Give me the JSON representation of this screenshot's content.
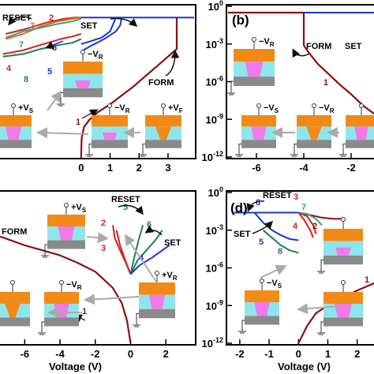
{
  "colors": {
    "form": "#8b1010",
    "red": "#d42020",
    "orange": "#e66a12",
    "green": "#1e7d5a",
    "teal": "#2aa58a",
    "blue": "#1a35d0",
    "electrode": "#f28a18",
    "oxide": "#8ee6ec",
    "filament": "#f07be8",
    "substrate": "#8a8a8a"
  },
  "xlabel": "Voltage (V)",
  "chart_data": [
    {
      "panel": "a",
      "type": "line",
      "yscale": "log",
      "xlim": [
        -2.8,
        3.9
      ],
      "ylim_exp": [
        -12,
        0
      ],
      "x_ticks": [
        "0",
        "1",
        "2",
        "3"
      ],
      "annotations": [
        "RESET",
        "SET",
        "FORM"
      ],
      "curve_numbers": [
        "1",
        "2",
        "3",
        "4",
        "5",
        "6",
        "7",
        "8"
      ],
      "series": [
        {
          "id": "form",
          "color": "form",
          "x": [
            0,
            0.02,
            0.1,
            0.3,
            0.6,
            1.0,
            1.4,
            1.8,
            2.2,
            2.6,
            2.9,
            3.1,
            3.25,
            3.3,
            3.3
          ],
          "exp": [
            -12,
            -10.5,
            -9.6,
            -9.0,
            -8.4,
            -7.8,
            -7.1,
            -6.4,
            -5.6,
            -4.8,
            -4.2,
            -3.8,
            -3.5,
            -3.4,
            -0.9
          ]
        },
        {
          "id": "set_line",
          "color": "blue",
          "x": [
            0,
            0.5,
            1.5,
            2.5,
            3.3,
            3.9
          ],
          "exp": [
            -0.9,
            -0.9,
            -0.9,
            -0.9,
            -0.9,
            -0.9
          ]
        },
        {
          "id": "c6",
          "color": "blue",
          "x": [
            0,
            0.3,
            0.8,
            1.2,
            1.35,
            1.4
          ],
          "exp": [
            -3.6,
            -3.2,
            -2.6,
            -2.0,
            -1.5,
            -0.9
          ]
        },
        {
          "id": "c5",
          "color": "blue",
          "x": [
            0,
            0.3,
            0.7,
            1.0,
            1.2
          ],
          "exp": [
            -3.0,
            -2.8,
            -2.5,
            -2.0,
            -0.9
          ]
        },
        {
          "id": "c2",
          "color": "red",
          "x": [
            -2.6,
            -1.9,
            -1.2,
            -0.6,
            -0.2,
            0
          ],
          "exp": [
            -2.2,
            -1.8,
            -1.3,
            -1.0,
            -0.9,
            -0.9
          ]
        },
        {
          "id": "c3",
          "color": "orange",
          "x": [
            -2.6,
            -2.0,
            -1.4,
            -0.8,
            -0.3,
            0
          ],
          "exp": [
            -2.6,
            -2.2,
            -1.6,
            -1.2,
            -1.0,
            -0.9
          ]
        },
        {
          "id": "c7",
          "color": "teal",
          "x": [
            -2.6,
            -2.0,
            -1.4,
            -0.8,
            -0.3,
            0
          ],
          "exp": [
            -2.5,
            -2.0,
            -1.7,
            -1.4,
            -1.2,
            -1.0
          ]
        },
        {
          "id": "c4",
          "color": "red",
          "x": [
            -2.7,
            -2.0,
            -1.3,
            -0.7,
            -0.3,
            0
          ],
          "exp": [
            -3.8,
            -3.5,
            -3.0,
            -2.6,
            -2.4,
            -2.2
          ]
        },
        {
          "id": "c8",
          "color": "green",
          "x": [
            -2.7,
            -2.0,
            -1.4,
            -0.8,
            -0.3,
            0
          ],
          "exp": [
            -4.0,
            -3.8,
            -3.4,
            -3.1,
            -2.9,
            -2.6
          ]
        }
      ]
    },
    {
      "panel": "b",
      "type": "line",
      "yscale": "log",
      "xlim": [
        -7.2,
        -1.0
      ],
      "ylim_exp": [
        -12,
        0
      ],
      "x_ticks": [
        "-6",
        "-4",
        "-2"
      ],
      "y_ticks": [
        "10^0",
        "10^-3",
        "10^-6",
        "10^-9",
        "10^-12"
      ],
      "annotations": [
        "FORM",
        "SET"
      ],
      "curve_numbers": [
        "1"
      ],
      "series": [
        {
          "id": "form",
          "color": "form",
          "x": [
            -1.0,
            -1.5,
            -2.0,
            -2.5,
            -3.0,
            -3.4,
            -3.7,
            -3.9,
            -4.0,
            -4.0,
            -5.0,
            -6.0,
            -7.2
          ],
          "exp": [
            -8.6,
            -7.9,
            -7.0,
            -6.2,
            -5.3,
            -4.6,
            -3.9,
            -3.4,
            -3.1,
            -0.5,
            -0.5,
            -0.5,
            -0.5
          ]
        },
        {
          "id": "set",
          "color": "blue",
          "x": [
            -4.0,
            -3.0,
            -2.0,
            -1.0
          ],
          "exp": [
            -0.5,
            -0.5,
            -0.5,
            -0.5
          ]
        }
      ]
    },
    {
      "panel": "c",
      "type": "line",
      "yscale": "log",
      "xlim": [
        -7.4,
        3.6
      ],
      "ylim_exp": [
        -12,
        0
      ],
      "x_ticks": [
        "-6",
        "-4",
        "-2",
        "0",
        "2"
      ],
      "annotations": [
        "FORM",
        "RESET",
        "SET"
      ],
      "curve_numbers": [
        "1",
        "2",
        "3",
        "4",
        "5",
        "6"
      ],
      "series": [
        {
          "id": "form",
          "color": "form",
          "x": [
            -7.4,
            -6.0,
            -5.0,
            -4.0,
            -3.0,
            -2.0,
            -1.0,
            -0.5,
            -0.2,
            0
          ],
          "exp": [
            -3.5,
            -4.2,
            -4.6,
            -5.0,
            -5.6,
            -6.3,
            -7.6,
            -8.8,
            -10.2,
            -12
          ]
        },
        {
          "id": "c2",
          "color": "red",
          "x": [
            0,
            -0.3,
            -0.6,
            -0.9,
            -1.0
          ],
          "exp": [
            -6.5,
            -5.5,
            -4.6,
            -3.6,
            -2.6
          ]
        },
        {
          "id": "c3",
          "color": "red",
          "x": [
            0,
            -0.3,
            -0.6,
            -0.8
          ],
          "exp": [
            -6.5,
            -5.4,
            -4.2,
            -3.0
          ]
        },
        {
          "id": "c5",
          "color": "green",
          "x": [
            0,
            0.2,
            0.45,
            0.7
          ],
          "exp": [
            -6.5,
            -5.2,
            -3.8,
            -2.6
          ]
        },
        {
          "id": "c6",
          "color": "green",
          "x": [
            0,
            0.4,
            0.9,
            1.4,
            1.8
          ],
          "exp": [
            -6.5,
            -5.4,
            -4.6,
            -3.8,
            -3.0
          ]
        },
        {
          "id": "c4",
          "color": "blue",
          "x": [
            0,
            0.5,
            1.2,
            1.8,
            2.2
          ],
          "exp": [
            -6.5,
            -5.8,
            -5.2,
            -4.6,
            -4.2
          ]
        }
      ]
    },
    {
      "panel": "d",
      "type": "line",
      "yscale": "log",
      "xlim": [
        -2.4,
        2.6
      ],
      "ylim_exp": [
        -12,
        0
      ],
      "x_ticks": [
        "-2",
        "-1",
        "0",
        "1",
        "2"
      ],
      "y_ticks": [
        "10^0",
        "10^-3",
        "10^-6",
        "10^-9",
        "10^-12"
      ],
      "annotations": [
        "RESET",
        "SET"
      ],
      "curve_numbers": [
        "1",
        "2",
        "3",
        "4",
        "5",
        "6",
        "7",
        "8"
      ],
      "series": [
        {
          "id": "form",
          "color": "form",
          "x": [
            0,
            0.3,
            0.6,
            1.0,
            1.5,
            2.0,
            2.6
          ],
          "exp": [
            -12,
            -10.6,
            -9.6,
            -9.0,
            -8.4,
            -7.8,
            -7.2
          ]
        },
        {
          "id": "set_line",
          "color": "blue",
          "x": [
            -2.2,
            -1.5,
            -1.0,
            -0.5,
            0
          ],
          "exp": [
            -1.6,
            -1.6,
            -1.6,
            -1.6,
            -1.6
          ]
        },
        {
          "id": "c5",
          "color": "blue",
          "x": [
            -1.5,
            -1.2,
            -0.9,
            -0.6,
            -0.3,
            0
          ],
          "exp": [
            -1.6,
            -2.4,
            -3.0,
            -3.4,
            -3.7,
            -3.8
          ]
        },
        {
          "id": "c8",
          "color": "green",
          "x": [
            -1.2,
            -0.9,
            -0.6,
            -0.3,
            0
          ],
          "exp": [
            -3.0,
            -3.6,
            -4.2,
            -4.6,
            -4.8
          ]
        },
        {
          "id": "c2",
          "color": "form",
          "x": [
            0,
            0.4,
            0.8,
            1.2,
            1.6
          ],
          "exp": [
            -1.6,
            -1.8,
            -2.0,
            -2.1,
            -2.1
          ]
        },
        {
          "id": "c3",
          "color": "red",
          "x": [
            0,
            0.3,
            0.5,
            0.6
          ],
          "exp": [
            -1.6,
            -1.9,
            -2.6,
            -3.3
          ]
        },
        {
          "id": "c7",
          "color": "teal",
          "x": [
            0,
            0.3,
            0.6,
            0.8
          ],
          "exp": [
            -1.6,
            -1.7,
            -2.1,
            -2.6
          ]
        },
        {
          "id": "c4",
          "color": "red",
          "x": [
            0,
            0.2,
            0.4,
            0.5
          ],
          "exp": [
            -1.6,
            -2.2,
            -3.0,
            -3.6
          ]
        }
      ]
    }
  ],
  "panels": {
    "b": {
      "label": "(b)"
    },
    "d": {
      "label": "(d)"
    }
  },
  "voltage_labels": [
    "V",
    "R",
    "S",
    "F"
  ]
}
